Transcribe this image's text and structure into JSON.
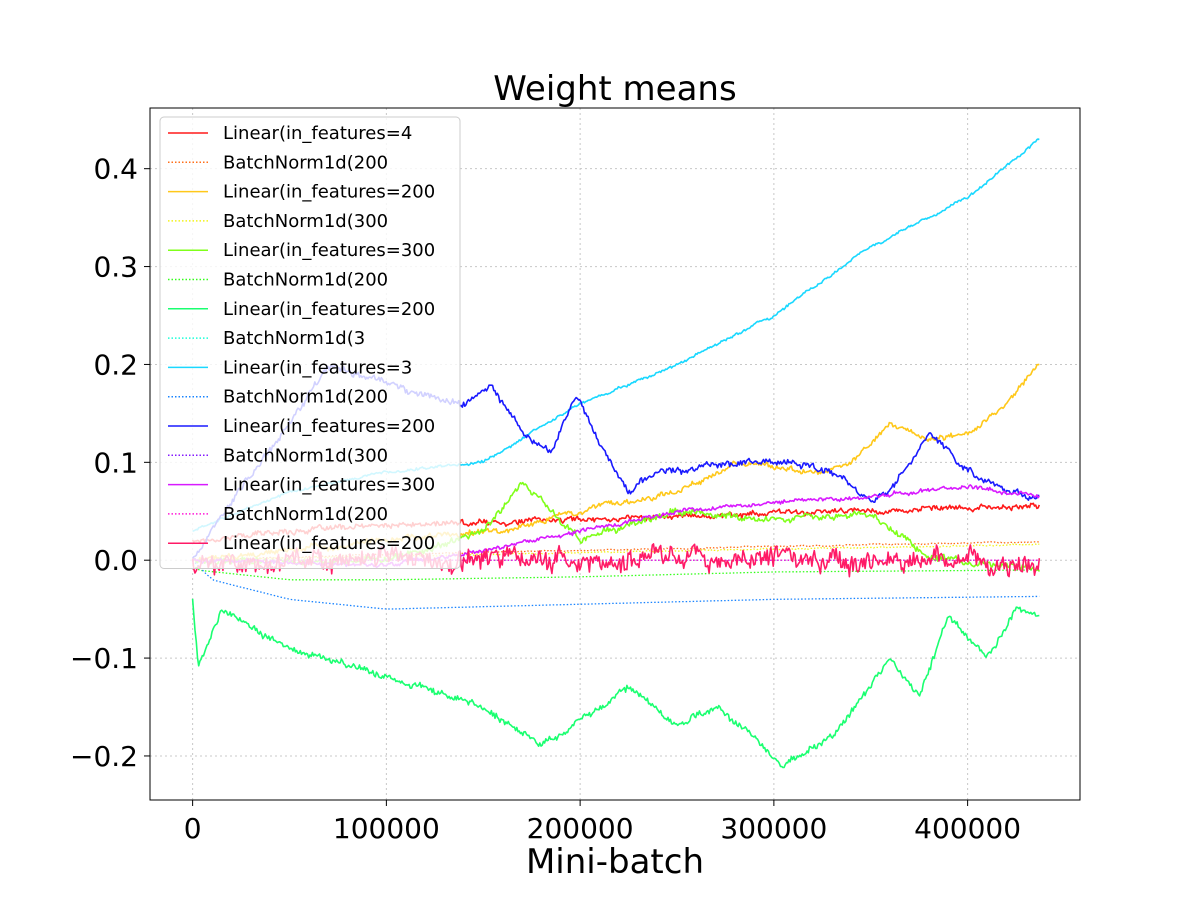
{
  "chart_data": {
    "type": "line",
    "title": "Weight means",
    "xlabel": "Mini-batch",
    "ylabel": "",
    "xlim": [
      -22000,
      458000
    ],
    "ylim": [
      -0.245,
      0.462
    ],
    "x_ticks": [
      0,
      100000,
      200000,
      300000,
      400000
    ],
    "x_tick_labels": [
      "0",
      "100000",
      "200000",
      "300000",
      "400000"
    ],
    "y_ticks": [
      -0.2,
      -0.1,
      0.0,
      0.1,
      0.2,
      0.3,
      0.4
    ],
    "y_tick_labels": [
      "−0.2",
      "−0.1",
      "0.0",
      "0.1",
      "0.2",
      "0.3",
      "0.4"
    ],
    "grid": true,
    "legend_position": "upper-left",
    "series": [
      {
        "name": "Linear(in_features=4",
        "color": "#ff1a1a",
        "dash": "solid",
        "noise": 0.004,
        "points": [
          [
            0,
            0.02
          ],
          [
            50000,
            0.03
          ],
          [
            100000,
            0.035
          ],
          [
            200000,
            0.042
          ],
          [
            300000,
            0.048
          ],
          [
            400000,
            0.053
          ],
          [
            437000,
            0.055
          ]
        ]
      },
      {
        "name": "BatchNorm1d(200",
        "color": "#ff6f1a",
        "dash": "dotted",
        "noise": 0.001,
        "points": [
          [
            0,
            0.0
          ],
          [
            100000,
            0.006
          ],
          [
            200000,
            0.01
          ],
          [
            300000,
            0.014
          ],
          [
            437000,
            0.019
          ]
        ]
      },
      {
        "name": "Linear(in_features=200",
        "color": "#ffc81a",
        "dash": "solid",
        "noise": 0.004,
        "points": [
          [
            0,
            0.0
          ],
          [
            100000,
            0.02
          ],
          [
            160000,
            0.03
          ],
          [
            200000,
            0.05
          ],
          [
            250000,
            0.07
          ],
          [
            280000,
            0.1
          ],
          [
            320000,
            0.09
          ],
          [
            340000,
            0.1
          ],
          [
            360000,
            0.14
          ],
          [
            380000,
            0.12
          ],
          [
            400000,
            0.13
          ],
          [
            420000,
            0.16
          ],
          [
            437000,
            0.2
          ]
        ]
      },
      {
        "name": "BatchNorm1d(300",
        "color": "#f2f21a",
        "dash": "dotted",
        "noise": 0.001,
        "points": [
          [
            0,
            0.0
          ],
          [
            200000,
            0.008
          ],
          [
            437000,
            0.016
          ]
        ]
      },
      {
        "name": "Linear(in_features=300",
        "color": "#80ff1a",
        "dash": "solid",
        "noise": 0.005,
        "points": [
          [
            0,
            0.0
          ],
          [
            100000,
            0.0
          ],
          [
            150000,
            0.03
          ],
          [
            170000,
            0.08
          ],
          [
            180000,
            0.06
          ],
          [
            200000,
            0.02
          ],
          [
            250000,
            0.05
          ],
          [
            300000,
            0.04
          ],
          [
            350000,
            0.05
          ],
          [
            380000,
            0.0
          ],
          [
            400000,
            0.0
          ],
          [
            437000,
            -0.01
          ]
        ]
      },
      {
        "name": "BatchNorm1d(200",
        "color": "#33ff1a",
        "dash": "dotted",
        "noise": 0.0,
        "points": [
          [
            0,
            -0.005
          ],
          [
            2000,
            -0.01
          ],
          [
            50000,
            -0.02
          ],
          [
            100000,
            -0.02
          ],
          [
            200000,
            -0.017
          ],
          [
            300000,
            -0.012
          ],
          [
            437000,
            -0.01
          ]
        ]
      },
      {
        "name": "Linear(in_features=200",
        "color": "#1aff70",
        "dash": "solid",
        "noise": 0.005,
        "points": [
          [
            0,
            -0.04
          ],
          [
            3000,
            -0.11
          ],
          [
            15000,
            -0.05
          ],
          [
            50000,
            -0.09
          ],
          [
            100000,
            -0.12
          ],
          [
            150000,
            -0.15
          ],
          [
            180000,
            -0.19
          ],
          [
            210000,
            -0.15
          ],
          [
            225000,
            -0.13
          ],
          [
            250000,
            -0.17
          ],
          [
            270000,
            -0.15
          ],
          [
            290000,
            -0.18
          ],
          [
            305000,
            -0.21
          ],
          [
            330000,
            -0.18
          ],
          [
            360000,
            -0.1
          ],
          [
            375000,
            -0.14
          ],
          [
            390000,
            -0.06
          ],
          [
            410000,
            -0.1
          ],
          [
            425000,
            -0.05
          ],
          [
            437000,
            -0.06
          ]
        ]
      },
      {
        "name": "BatchNorm1d(3",
        "color": "#1affd7",
        "dash": "dotted",
        "noise": 0.0,
        "points": [
          [
            0,
            0.0
          ],
          [
            437000,
            0.0
          ]
        ]
      },
      {
        "name": "Linear(in_features=3",
        "color": "#1ad8ff",
        "dash": "solid",
        "noise": 0.002,
        "points": [
          [
            0,
            0.03
          ],
          [
            50000,
            0.07
          ],
          [
            100000,
            0.09
          ],
          [
            150000,
            0.1
          ],
          [
            200000,
            0.16
          ],
          [
            250000,
            0.2
          ],
          [
            300000,
            0.25
          ],
          [
            350000,
            0.32
          ],
          [
            400000,
            0.37
          ],
          [
            437000,
            0.43
          ]
        ]
      },
      {
        "name": "BatchNorm1d(200",
        "color": "#1a84ff",
        "dash": "dotted",
        "noise": 0.0,
        "points": [
          [
            0,
            0.0
          ],
          [
            10000,
            -0.02
          ],
          [
            50000,
            -0.04
          ],
          [
            100000,
            -0.05
          ],
          [
            200000,
            -0.045
          ],
          [
            300000,
            -0.04
          ],
          [
            437000,
            -0.037
          ]
        ]
      },
      {
        "name": "Linear(in_features=200",
        "color": "#1a1aff",
        "dash": "solid",
        "noise": 0.005,
        "points": [
          [
            0,
            0.0
          ],
          [
            20000,
            0.06
          ],
          [
            50000,
            0.14
          ],
          [
            70000,
            0.2
          ],
          [
            100000,
            0.18
          ],
          [
            140000,
            0.16
          ],
          [
            155000,
            0.18
          ],
          [
            170000,
            0.13
          ],
          [
            185000,
            0.11
          ],
          [
            198000,
            0.17
          ],
          [
            210000,
            0.12
          ],
          [
            225000,
            0.07
          ],
          [
            240000,
            0.09
          ],
          [
            280000,
            0.1
          ],
          [
            310000,
            0.1
          ],
          [
            330000,
            0.09
          ],
          [
            350000,
            0.06
          ],
          [
            360000,
            0.07
          ],
          [
            380000,
            0.13
          ],
          [
            400000,
            0.09
          ],
          [
            420000,
            0.07
          ],
          [
            437000,
            0.065
          ]
        ]
      },
      {
        "name": "BatchNorm1d(300",
        "color": "#841aff",
        "dash": "dotted",
        "noise": 0.0,
        "points": [
          [
            0,
            0.0
          ],
          [
            437000,
            0.0
          ]
        ]
      },
      {
        "name": "Linear(in_features=300",
        "color": "#d81aff",
        "dash": "solid",
        "noise": 0.003,
        "points": [
          [
            0,
            0.0
          ],
          [
            100000,
            -0.005
          ],
          [
            150000,
            0.01
          ],
          [
            200000,
            0.03
          ],
          [
            250000,
            0.05
          ],
          [
            300000,
            0.06
          ],
          [
            350000,
            0.065
          ],
          [
            400000,
            0.075
          ],
          [
            437000,
            0.065
          ]
        ]
      },
      {
        "name": "BatchNorm1d(200",
        "color": "#ff1ad8",
        "dash": "dotted",
        "noise": 0.0,
        "points": [
          [
            0,
            0.0
          ],
          [
            437000,
            0.0
          ]
        ]
      },
      {
        "name": "Linear(in_features=200",
        "color": "#ff1a66",
        "dash": "solid",
        "noise": 0.015,
        "points": [
          [
            0,
            0.0
          ],
          [
            437000,
            0.0
          ]
        ]
      }
    ]
  }
}
